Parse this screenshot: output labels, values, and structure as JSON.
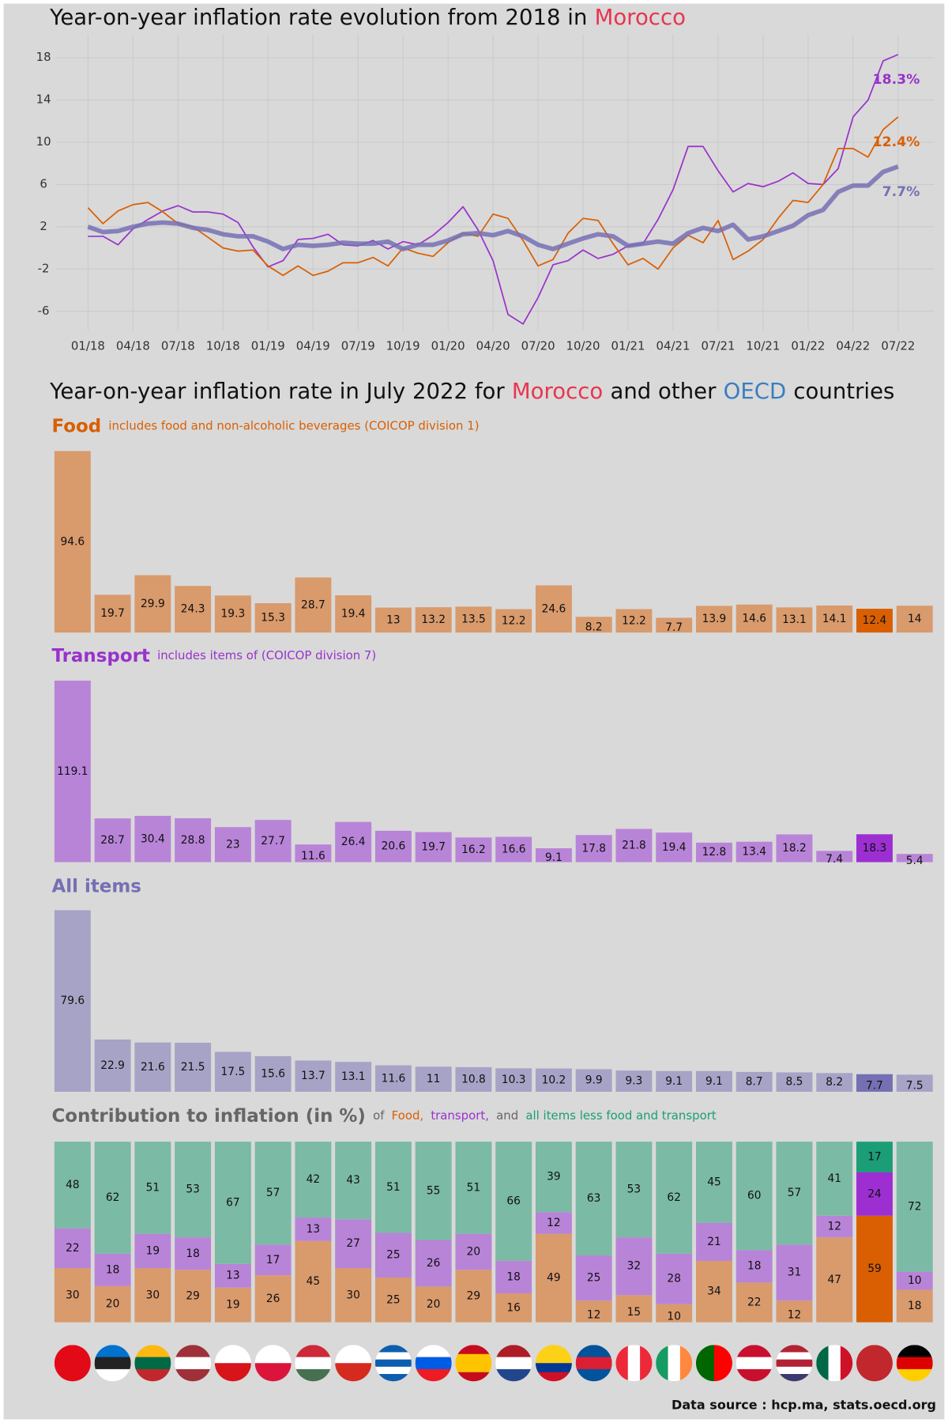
{
  "chart_data": [
    {
      "type": "line",
      "title_parts": [
        {
          "text": "Year-on-year inflation rate evolution from 2018 in",
          "color": "#111111"
        },
        {
          "text": "Morocco",
          "color": "#e8354f"
        }
      ],
      "categories": [
        "01/18",
        null,
        null,
        "04/18",
        null,
        null,
        "07/18",
        null,
        null,
        "10/18",
        null,
        null,
        "01/19",
        null,
        null,
        "04/19",
        null,
        null,
        "07/19",
        null,
        null,
        "10/19",
        null,
        null,
        "01/20",
        null,
        null,
        "04/20",
        null,
        null,
        "07/20",
        null,
        null,
        "10/20",
        null,
        null,
        "01/21",
        null,
        null,
        "04/21",
        null,
        null,
        "07/21",
        null,
        null,
        "10/21",
        null,
        null,
        "01/22",
        null,
        null,
        "04/22",
        null,
        null,
        "07/22"
      ],
      "series": [
        {
          "color": "#9932cc",
          "line_width": 1.5,
          "values": [
            1.1,
            1.1,
            0.3,
            1.8,
            2.7,
            3.5,
            4.0,
            3.4,
            3.4,
            3.2,
            2.4,
            0.1,
            -1.8,
            -1.2,
            0.8,
            0.9,
            1.3,
            0.3,
            0.2,
            0.7,
            -0.1,
            0.6,
            0.3,
            1.2,
            2.4,
            3.9,
            1.7,
            -1.2,
            -6.3,
            -7.2,
            -4.7,
            -1.6,
            -1.2,
            -0.2,
            -1.0,
            -0.6,
            0.2,
            0.4,
            2.7,
            5.5,
            9.6,
            9.6,
            7.3,
            5.3,
            6.1,
            5.8,
            6.3,
            7.1,
            6.1,
            6.0,
            7.5,
            12.4,
            14.0,
            17.7,
            18.3
          ],
          "value_labels": [
            null,
            null,
            null,
            null,
            null,
            null,
            null,
            null,
            null,
            null,
            null,
            null,
            null,
            null,
            null,
            null,
            null,
            null,
            null,
            null,
            null,
            null,
            null,
            null,
            null,
            null,
            null,
            null,
            null,
            null,
            null,
            null,
            null,
            null,
            null,
            null,
            null,
            null,
            null,
            null,
            null,
            null,
            null,
            null,
            null,
            null,
            null,
            null,
            null,
            null,
            null,
            null,
            null,
            null,
            "18.3%"
          ]
        },
        {
          "color": "#d95f02",
          "line_width": 1.5,
          "values": [
            3.8,
            2.3,
            3.5,
            4.1,
            4.3,
            3.4,
            2.3,
            2.0,
            1.0,
            0.0,
            -0.3,
            -0.2,
            -1.7,
            -2.6,
            -1.7,
            -2.6,
            -2.2,
            -1.4,
            -1.4,
            -0.9,
            -1.7,
            0.0,
            -0.5,
            -0.8,
            0.5,
            1.4,
            1.1,
            3.2,
            2.8,
            0.7,
            -1.7,
            -1.1,
            1.4,
            2.8,
            2.6,
            0.4,
            -1.6,
            -1.0,
            -2.0,
            0.0,
            1.2,
            0.5,
            2.6,
            -1.1,
            -0.3,
            0.8,
            2.8,
            4.5,
            4.3,
            6.0,
            9.4,
            9.4,
            8.6,
            11.2,
            12.4
          ],
          "value_labels": [
            null,
            null,
            null,
            null,
            null,
            null,
            null,
            null,
            null,
            null,
            null,
            null,
            null,
            null,
            null,
            null,
            null,
            null,
            null,
            null,
            null,
            null,
            null,
            null,
            null,
            null,
            null,
            null,
            null,
            null,
            null,
            null,
            null,
            null,
            null,
            null,
            null,
            null,
            null,
            null,
            null,
            null,
            null,
            null,
            null,
            null,
            null,
            null,
            null,
            null,
            null,
            null,
            null,
            null,
            "12.4%"
          ]
        },
        {
          "color": "#7570b3",
          "line_width": 5,
          "values": [
            2.0,
            1.5,
            1.6,
            2.0,
            2.3,
            2.4,
            2.3,
            1.9,
            1.7,
            1.3,
            1.1,
            1.1,
            0.6,
            -0.1,
            0.3,
            0.2,
            0.3,
            0.5,
            0.4,
            0.4,
            0.6,
            -0.1,
            0.3,
            0.3,
            0.7,
            1.3,
            1.4,
            1.2,
            1.6,
            1.1,
            0.3,
            -0.1,
            0.4,
            0.9,
            1.3,
            1.1,
            0.2,
            0.4,
            0.6,
            0.4,
            1.4,
            1.9,
            1.6,
            2.2,
            0.8,
            1.1,
            1.6,
            2.1,
            3.1,
            3.6,
            5.3,
            5.9,
            5.9,
            7.2,
            7.7
          ],
          "value_labels": [
            null,
            null,
            null,
            null,
            null,
            null,
            null,
            null,
            null,
            null,
            null,
            null,
            null,
            null,
            null,
            null,
            null,
            null,
            null,
            null,
            null,
            null,
            null,
            null,
            null,
            null,
            null,
            null,
            null,
            null,
            null,
            null,
            null,
            null,
            null,
            null,
            null,
            null,
            null,
            null,
            null,
            null,
            null,
            null,
            null,
            null,
            null,
            null,
            null,
            null,
            null,
            null,
            null,
            null,
            "7.7%"
          ]
        }
      ],
      "ylim": [
        -7.8,
        20.2
      ],
      "yticks": [
        18,
        14,
        10,
        6,
        2,
        -2,
        -6
      ],
      "grid": true
    },
    {
      "type": "bar",
      "title_parts": [
        {
          "text": "Year-on-year inflation rate in July 2022 for",
          "color": "#111111"
        },
        {
          "text": "Morocco",
          "color": "#e8354f"
        },
        {
          "text": "and other",
          "color": "#111111"
        },
        {
          "text": "OECD",
          "color": "#3a7dc0"
        },
        {
          "text": "countries",
          "color": "#111111"
        }
      ],
      "subtitle_parts": [
        {
          "text": "Food",
          "color": "#d95f02"
        },
        {
          "text": "includes food and non-alcoholic beverages (COICOP division 1)",
          "color": "#d95f02"
        }
      ],
      "values": [
        94.6,
        19.7,
        29.9,
        24.3,
        19.3,
        15.3,
        28.7,
        19.4,
        13,
        13.2,
        13.5,
        12.2,
        24.6,
        8.2,
        12.2,
        7.7,
        13.9,
        14.6,
        13.1,
        14.1,
        12.4,
        14
      ],
      "colors": [
        "#d99a6c",
        "#d99a6c",
        "#d99a6c",
        "#d99a6c",
        "#d99a6c",
        "#d99a6c",
        "#d99a6c",
        "#d99a6c",
        "#d99a6c",
        "#d99a6c",
        "#d99a6c",
        "#d99a6c",
        "#d99a6c",
        "#d99a6c",
        "#d99a6c",
        "#d99a6c",
        "#d99a6c",
        "#d99a6c",
        "#d99a6c",
        "#d99a6c",
        "#d95f02",
        "#d99a6c"
      ]
    },
    {
      "type": "bar",
      "subtitle_parts": [
        {
          "text": "Transport",
          "color": "#9932cc"
        },
        {
          "text": "includes items of (COICOP division 7)",
          "color": "#9932cc"
        }
      ],
      "values": [
        119.1,
        28.7,
        30.4,
        28.8,
        23,
        27.7,
        11.6,
        26.4,
        20.6,
        19.7,
        16.2,
        16.6,
        9.1,
        17.8,
        21.8,
        19.4,
        12.8,
        13.4,
        18.2,
        7.4,
        18.3,
        5.4
      ],
      "colors": [
        "#b884d8",
        "#b884d8",
        "#b884d8",
        "#b884d8",
        "#b884d8",
        "#b884d8",
        "#b884d8",
        "#b884d8",
        "#b884d8",
        "#b884d8",
        "#b884d8",
        "#b884d8",
        "#b884d8",
        "#b884d8",
        "#b884d8",
        "#b884d8",
        "#b884d8",
        "#b884d8",
        "#b884d8",
        "#b884d8",
        "#9d2fd2",
        "#b884d8"
      ]
    },
    {
      "type": "bar",
      "subtitle_parts": [
        {
          "text": "All items",
          "color": "#7570b3"
        }
      ],
      "values": [
        79.6,
        22.9,
        21.6,
        21.5,
        17.5,
        15.6,
        13.7,
        13.1,
        11.6,
        11,
        10.8,
        10.3,
        10.2,
        9.9,
        9.3,
        9.1,
        9.1,
        8.7,
        8.5,
        8.2,
        7.7,
        7.5
      ],
      "colors": [
        "#a7a3c6",
        "#a7a3c6",
        "#a7a3c6",
        "#a7a3c6",
        "#a7a3c6",
        "#a7a3c6",
        "#a7a3c6",
        "#a7a3c6",
        "#a7a3c6",
        "#a7a3c6",
        "#a7a3c6",
        "#a7a3c6",
        "#a7a3c6",
        "#a7a3c6",
        "#a7a3c6",
        "#a7a3c6",
        "#a7a3c6",
        "#a7a3c6",
        "#a7a3c6",
        "#a7a3c6",
        "#7570b3",
        "#a7a3c6"
      ]
    },
    {
      "type": "stacked_bar",
      "subtitle_parts": [
        {
          "text": "Contribution to inflation (in %)",
          "color": "#666666"
        },
        {
          "text": "of",
          "color": "#666666"
        },
        {
          "text": "Food,",
          "color": "#d95f02"
        },
        {
          "text": "transport,",
          "color": "#9932cc"
        },
        {
          "text": "and",
          "color": "#666666"
        },
        {
          "text": "all items less food and transport",
          "color": "#1b9e77"
        }
      ],
      "series": [
        {
          "values": [
            30,
            20,
            30,
            29,
            19,
            26,
            45,
            30,
            25,
            20,
            29,
            16,
            49,
            12,
            15,
            10,
            34,
            22,
            12,
            47,
            59,
            18
          ],
          "colors": [
            "#d99a6c",
            "#d99a6c",
            "#d99a6c",
            "#d99a6c",
            "#d99a6c",
            "#d99a6c",
            "#d99a6c",
            "#d99a6c",
            "#d99a6c",
            "#d99a6c",
            "#d99a6c",
            "#d99a6c",
            "#d99a6c",
            "#d99a6c",
            "#d99a6c",
            "#d99a6c",
            "#d99a6c",
            "#d99a6c",
            "#d99a6c",
            "#d99a6c",
            "#d95f02",
            "#d99a6c"
          ]
        },
        {
          "values": [
            22,
            18,
            19,
            18,
            13,
            17,
            13,
            27,
            25,
            26,
            20,
            18,
            12,
            25,
            32,
            28,
            21,
            18,
            31,
            12,
            24,
            10
          ],
          "colors": [
            "#b884d8",
            "#b884d8",
            "#b884d8",
            "#b884d8",
            "#b884d8",
            "#b884d8",
            "#b884d8",
            "#b884d8",
            "#b884d8",
            "#b884d8",
            "#b884d8",
            "#b884d8",
            "#b884d8",
            "#b884d8",
            "#b884d8",
            "#b884d8",
            "#b884d8",
            "#b884d8",
            "#b884d8",
            "#b884d8",
            "#9d2fd2",
            "#b884d8"
          ]
        },
        {
          "values": [
            48,
            62,
            51,
            53,
            67,
            57,
            42,
            43,
            51,
            55,
            51,
            66,
            39,
            63,
            53,
            62,
            45,
            60,
            57,
            41,
            17,
            72
          ],
          "colors": [
            "#7bbaa5",
            "#7bbaa5",
            "#7bbaa5",
            "#7bbaa5",
            "#7bbaa5",
            "#7bbaa5",
            "#7bbaa5",
            "#7bbaa5",
            "#7bbaa5",
            "#7bbaa5",
            "#7bbaa5",
            "#7bbaa5",
            "#7bbaa5",
            "#7bbaa5",
            "#7bbaa5",
            "#7bbaa5",
            "#7bbaa5",
            "#7bbaa5",
            "#7bbaa5",
            "#7bbaa5",
            "#1b9e77",
            "#7bbaa5"
          ]
        }
      ]
    }
  ],
  "source": "Data source : hcp.ma, stats.oecd.org"
}
